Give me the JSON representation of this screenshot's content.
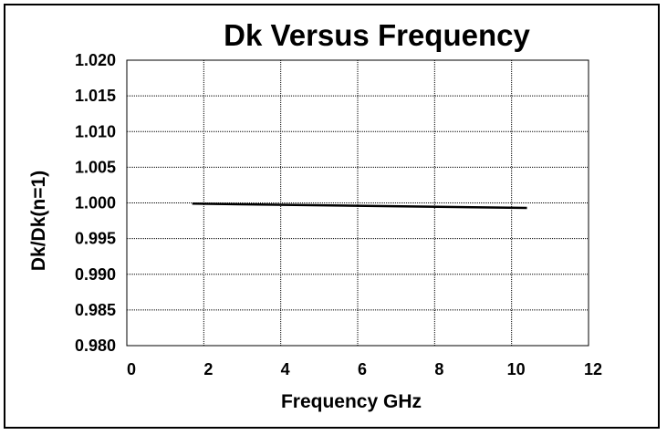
{
  "chart_data": {
    "type": "line",
    "title": "Dk Versus Frequency",
    "xlabel": "Frequency GHz",
    "ylabel": "Dk/Dk(n=1)",
    "xlim": [
      0,
      12
    ],
    "ylim": [
      0.98,
      1.02
    ],
    "xticks": [
      0,
      2,
      4,
      6,
      8,
      10,
      12
    ],
    "xtick_labels": [
      "0",
      "2",
      "4",
      "6",
      "8",
      "10",
      "12"
    ],
    "yticks": [
      0.98,
      0.985,
      0.99,
      0.995,
      1.0,
      1.005,
      1.01,
      1.015,
      1.02
    ],
    "ytick_labels": [
      "0.980",
      "0.985",
      "0.990",
      "0.995",
      "1.000",
      "1.005",
      "1.010",
      "1.015",
      "1.020"
    ],
    "grid": true,
    "legend": "none",
    "series": [
      {
        "color": "#000000",
        "x": [
          1.7,
          10.4
        ],
        "y": [
          0.9999,
          0.9993
        ]
      }
    ]
  }
}
